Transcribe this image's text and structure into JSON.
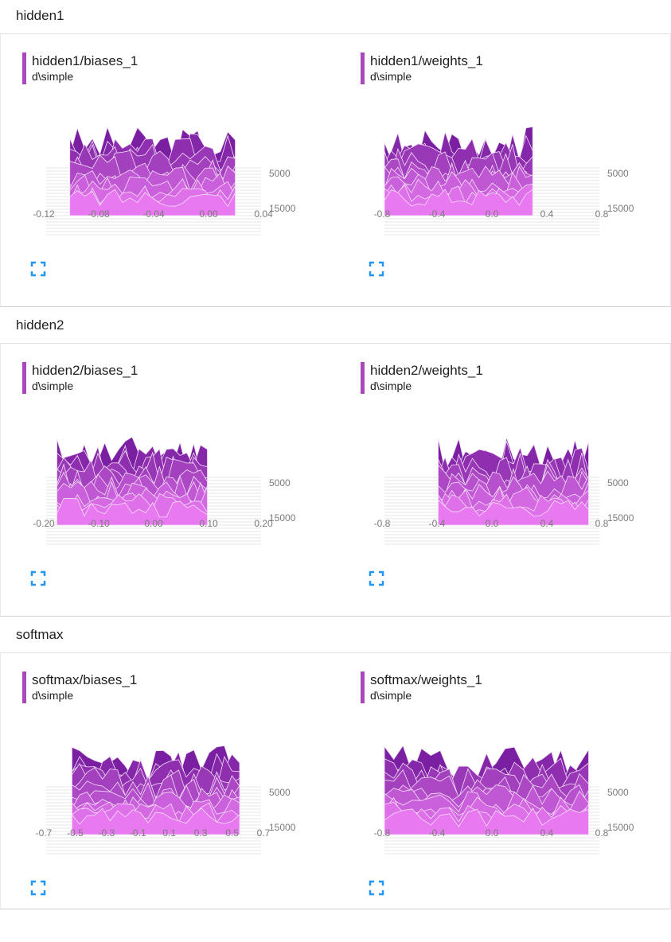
{
  "sections": [
    {
      "title": "hidden1",
      "cards": [
        {
          "title": "hidden1/biases_1",
          "run": "d\\simple",
          "x_ticks": [
            "-0.12",
            "-0.08",
            "-0.04",
            "0.00",
            "0.04"
          ],
          "y_ticks": [
            "5000",
            "15000"
          ]
        },
        {
          "title": "hidden1/weights_1",
          "run": "d\\simple",
          "x_ticks": [
            "-0.8",
            "-0.4",
            "0.0",
            "0.4",
            "0.8"
          ],
          "y_ticks": [
            "5000",
            "15000"
          ]
        }
      ]
    },
    {
      "title": "hidden2",
      "cards": [
        {
          "title": "hidden2/biases_1",
          "run": "d\\simple",
          "x_ticks": [
            "-0.20",
            "-0.10",
            "0.00",
            "0.10",
            "0.20"
          ],
          "y_ticks": [
            "5000",
            "15000"
          ]
        },
        {
          "title": "hidden2/weights_1",
          "run": "d\\simple",
          "x_ticks": [
            "-0.8",
            "-0.4",
            "0.0",
            "0.4",
            "0.8"
          ],
          "y_ticks": [
            "5000",
            "15000"
          ]
        }
      ]
    },
    {
      "title": "softmax",
      "cards": [
        {
          "title": "softmax/biases_1",
          "run": "d\\simple",
          "x_ticks": [
            "-0.7",
            "-0.5",
            "-0.3",
            "-0.1",
            "0.1",
            "0.3",
            "0.5",
            "0.7"
          ],
          "y_ticks": [
            "5000",
            "15000"
          ]
        },
        {
          "title": "softmax/weights_1",
          "run": "d\\simple",
          "x_ticks": [
            "-0.8",
            "-0.4",
            "0.0",
            "0.4",
            "0.8"
          ],
          "y_ticks": [
            "5000",
            "15000"
          ]
        }
      ]
    }
  ],
  "colors": {
    "accent": "#ab47bc",
    "histogram_dark": "#7b1fa2",
    "histogram_light": "#e879f0",
    "expand_icon": "#2196f3"
  },
  "icons": {
    "expand": "expand-icon"
  }
}
